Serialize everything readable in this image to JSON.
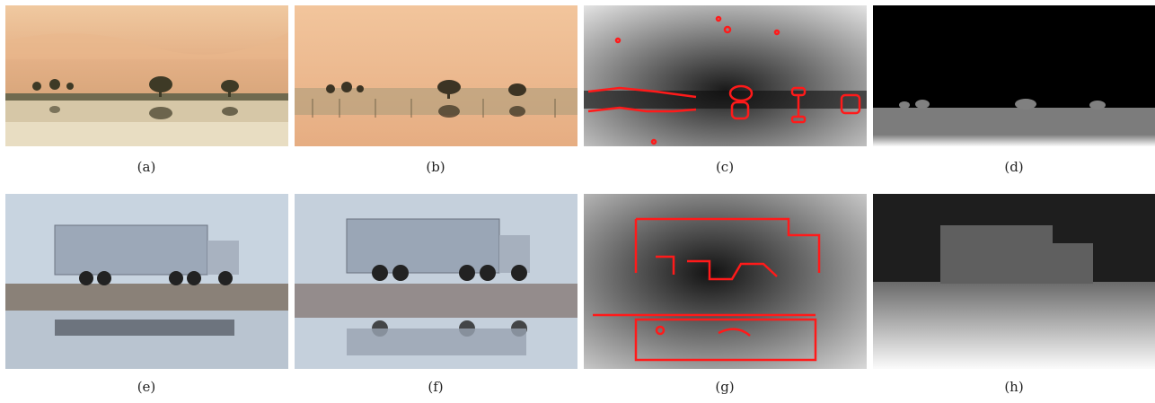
{
  "figure": {
    "captions": [
      "(a)",
      "(b)",
      "(c)",
      "(d)",
      "(e)",
      "(f)",
      "(g)",
      "(h)"
    ]
  },
  "colors": {
    "sand": "#e8b98a",
    "edge": "#ff1a1a",
    "sky": "#c9d6e3",
    "truck": "#9aa6b8"
  }
}
